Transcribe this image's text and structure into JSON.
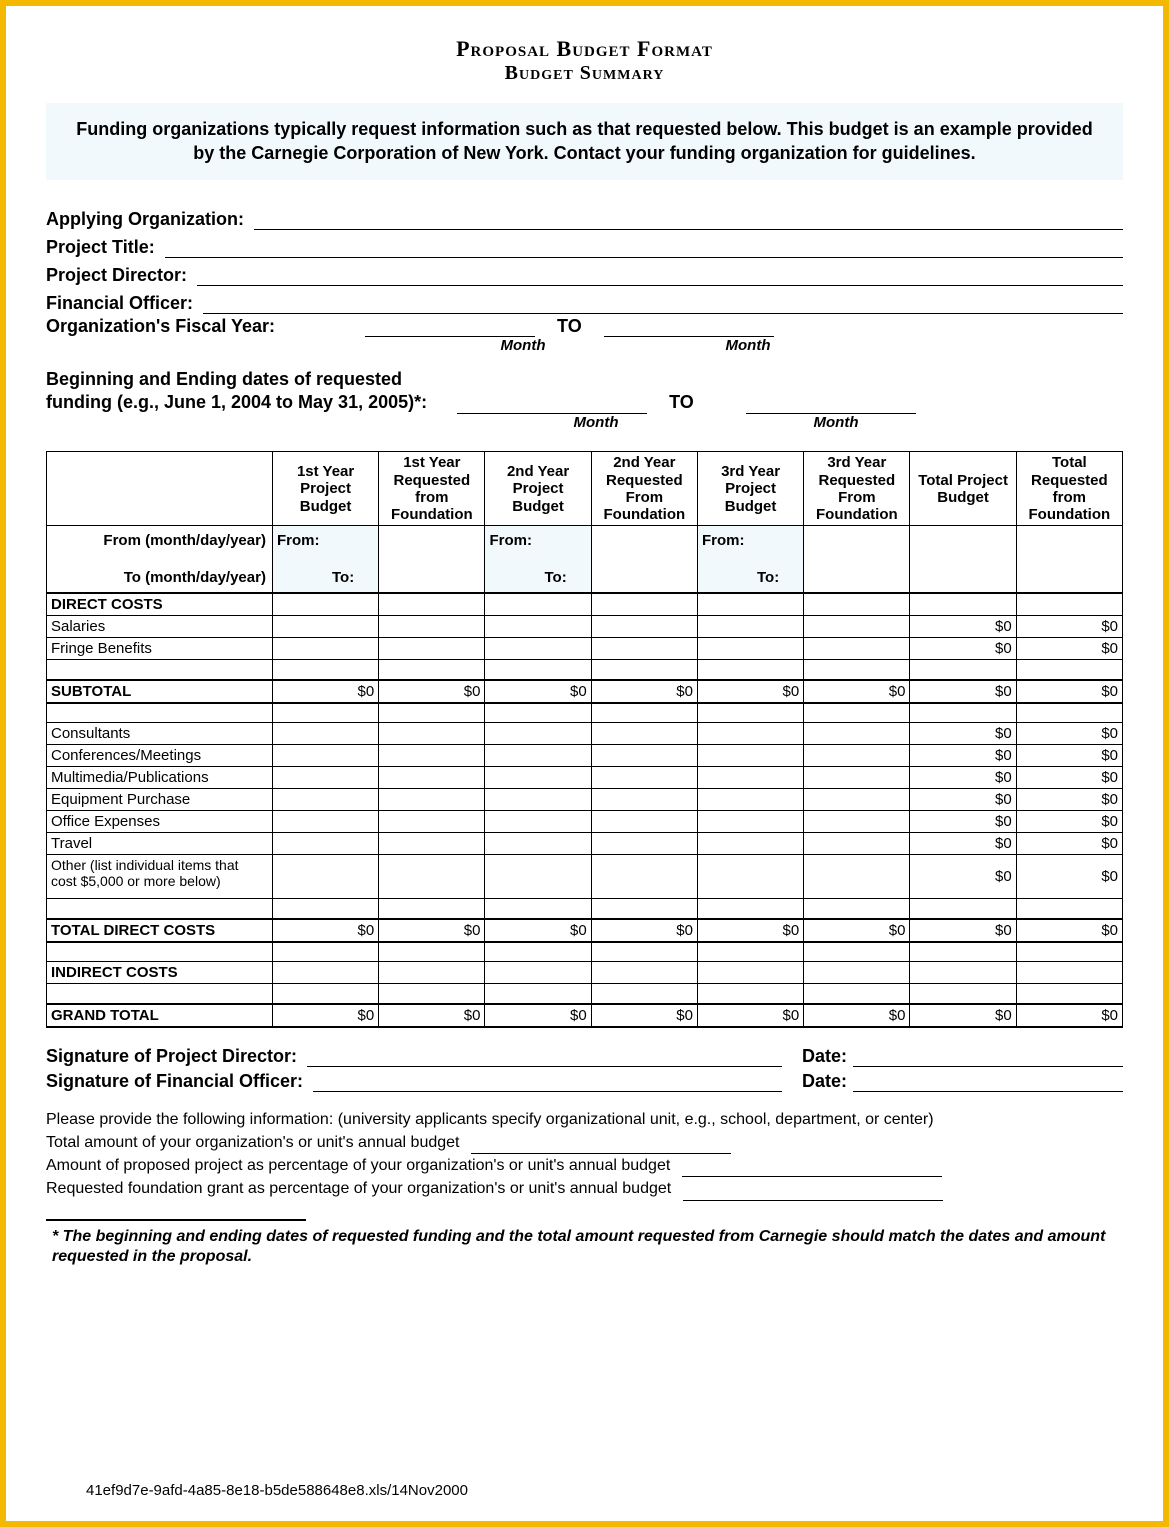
{
  "colors": {
    "frame_border": "#f5b800",
    "info_bg": "#f2f9fc",
    "text": "#000000",
    "page_bg": "#ffffff",
    "rule": "#000000"
  },
  "typography": {
    "title_family": "Times New Roman, serif",
    "body_family": "Arial, Helvetica, sans-serif",
    "title_size_pt": 17,
    "body_size_pt": 13
  },
  "header": {
    "title": "Proposal Budget Format",
    "subtitle": "Budget Summary"
  },
  "info_box": "Funding organizations typically request information such as that requested below.  This budget is an example provided by the Carnegie Corporation of New York.  Contact your funding organization for guidelines.",
  "fields": {
    "applying_org": "Applying Organization:",
    "project_title": "Project Title:",
    "project_director": "Project Director:",
    "financial_officer": "Financial Officer:",
    "fiscal_year": "Organization's Fiscal Year:",
    "to": "TO",
    "month": "Month",
    "funding_dates_l1": "Beginning and Ending dates of requested",
    "funding_dates_l2": "funding (e.g., June 1, 2004 to May 31, 2005)*:"
  },
  "table": {
    "columns": [
      "",
      "1st Year Project Budget",
      "1st Year Requested from Foundation",
      "2nd Year Project Budget",
      "2nd Year Requested From Foundation",
      "3rd Year Project Budget",
      "3rd Year Requested From Foundation",
      "Total Project Budget",
      "Total Requested from Foundation"
    ],
    "from_to_row": {
      "left_label_from": "From (month/day/year)",
      "left_label_to": "To (month/day/year)",
      "from": "From:",
      "to": "To:"
    },
    "section_direct": "DIRECT COSTS",
    "rows_direct_a": [
      {
        "label": "Salaries",
        "vals": [
          "",
          "",
          "",
          "",
          "",
          "",
          "$0",
          "$0"
        ]
      },
      {
        "label": "Fringe Benefits",
        "vals": [
          "",
          "",
          "",
          "",
          "",
          "",
          "$0",
          "$0"
        ]
      }
    ],
    "blank": {
      "label": "",
      "vals": [
        "",
        "",
        "",
        "",
        "",
        "",
        "",
        ""
      ]
    },
    "subtotal": {
      "label": "SUBTOTAL",
      "vals": [
        "$0",
        "$0",
        "$0",
        "$0",
        "$0",
        "$0",
        "$0",
        "$0"
      ]
    },
    "rows_direct_b": [
      {
        "label": "Consultants",
        "vals": [
          "",
          "",
          "",
          "",
          "",
          "",
          "$0",
          "$0"
        ]
      },
      {
        "label": "Conferences/Meetings",
        "vals": [
          "",
          "",
          "",
          "",
          "",
          "",
          "$0",
          "$0"
        ]
      },
      {
        "label": "Multimedia/Publications",
        "vals": [
          "",
          "",
          "",
          "",
          "",
          "",
          "$0",
          "$0"
        ]
      },
      {
        "label": "Equipment Purchase",
        "vals": [
          "",
          "",
          "",
          "",
          "",
          "",
          "$0",
          "$0"
        ]
      },
      {
        "label": "Office Expenses",
        "vals": [
          "",
          "",
          "",
          "",
          "",
          "",
          "$0",
          "$0"
        ]
      },
      {
        "label": "Travel",
        "vals": [
          "",
          "",
          "",
          "",
          "",
          "",
          "$0",
          "$0"
        ]
      }
    ],
    "other_row": {
      "label": "Other (list individual items that cost $5,000 or more below)",
      "vals": [
        "",
        "",
        "",
        "",
        "",
        "",
        "$0",
        "$0"
      ]
    },
    "total_direct": {
      "label": "TOTAL DIRECT COSTS",
      "vals": [
        "$0",
        "$0",
        "$0",
        "$0",
        "$0",
        "$0",
        "$0",
        "$0"
      ]
    },
    "section_indirect": "INDIRECT COSTS",
    "grand_total": {
      "label": "GRAND TOTAL",
      "vals": [
        "$0",
        "$0",
        "$0",
        "$0",
        "$0",
        "$0",
        "$0",
        "$0"
      ]
    }
  },
  "signatures": {
    "pd": "Signature of Project Director:",
    "fo": "Signature of Financial Officer:",
    "date": "Date:"
  },
  "notes": {
    "l1": "Please provide the following information: (university applicants specify organizational unit, e.g., school, department, or center)",
    "l2": "Total amount of your organization's or unit's annual budget",
    "l3": "Amount of proposed project as percentage of your organization's or unit's annual budget",
    "l4": "Requested foundation grant as percentage of your organization's or unit's annual budget"
  },
  "footnote": "* The beginning and ending dates of requested funding and the total amount requested from Carnegie should match the dates and amount requested in the proposal.",
  "doc_id": "41ef9d7e-9afd-4a85-8e18-b5de588648e8.xls/14Nov2000"
}
